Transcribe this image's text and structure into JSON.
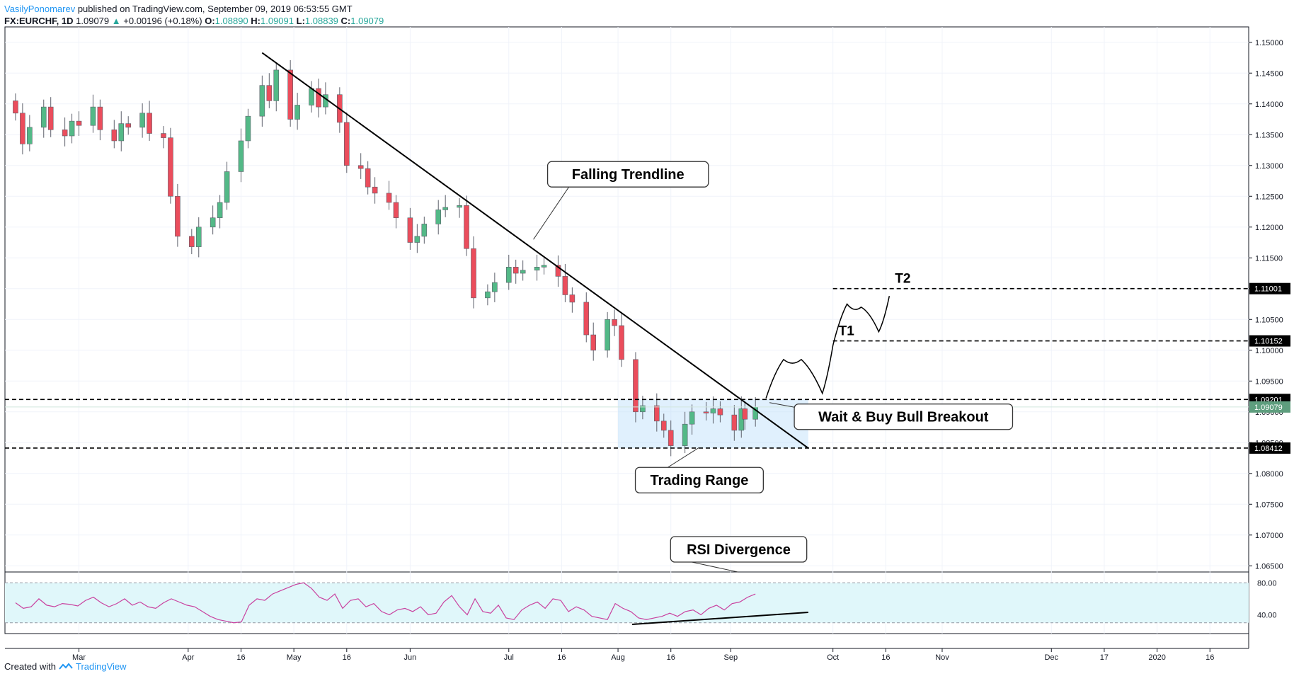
{
  "header": {
    "author": "VasilyPonomarev",
    "published": "published on TradingView.com, September 09, 2019 06:53:55 GMT",
    "symbol": "FX:EURCHF, 1D",
    "last": "1.09079",
    "arrow": "▲",
    "change": "+0.00196 (+0.18%)",
    "ohlc": [
      {
        "k": "O:",
        "v": "1.08890"
      },
      {
        "k": "H:",
        "v": "1.09091"
      },
      {
        "k": "L:",
        "v": "1.08839"
      },
      {
        "k": "C:",
        "v": "1.09079"
      }
    ]
  },
  "footer": {
    "created": "Created with",
    "brand": "TradingView"
  },
  "colors": {
    "up": "#53b987",
    "down": "#eb4d5c",
    "wick": "#5d606b",
    "range_fill": "#bbdefb",
    "rsi_band": "#e0f7fa",
    "rsi_line": "#c9429f",
    "axis": "#131722",
    "price_tag": "#5e9e7e"
  },
  "chart_data": {
    "type": "candlestick",
    "symbol": "FX:EURCHF",
    "interval": "1D",
    "y_axis_ticks": [
      "1.15000",
      "1.14500",
      "1.14000",
      "1.13500",
      "1.13000",
      "1.12500",
      "1.12000",
      "1.11500",
      "1.11000",
      "1.10500",
      "1.10000",
      "1.09500",
      "1.09000",
      "1.08500",
      "1.08000",
      "1.07500",
      "1.07000",
      "1.06500"
    ],
    "y_tick_values": [
      1.15,
      1.145,
      1.14,
      1.135,
      1.13,
      1.125,
      1.12,
      1.115,
      1.11,
      1.105,
      1.1,
      1.095,
      1.09,
      1.085,
      1.08,
      1.075,
      1.07,
      1.065
    ],
    "ylim": [
      1.064,
      1.1525
    ],
    "x_axis_ticks": [
      {
        "label": "Mar",
        "date": "2019-03-01"
      },
      {
        "label": "Apr",
        "date": "2019-04-01"
      },
      {
        "label": "16",
        "date": "2019-04-16"
      },
      {
        "label": "May",
        "date": "2019-05-01"
      },
      {
        "label": "16",
        "date": "2019-05-16"
      },
      {
        "label": "Jun",
        "date": "2019-06-03"
      },
      {
        "label": "Jul",
        "date": "2019-07-01"
      },
      {
        "label": "16",
        "date": "2019-07-16"
      },
      {
        "label": "Aug",
        "date": "2019-08-01"
      },
      {
        "label": "16",
        "date": "2019-08-16"
      },
      {
        "label": "Sep",
        "date": "2019-09-02"
      },
      {
        "label": "Oct",
        "date": "2019-10-01"
      },
      {
        "label": "16",
        "date": "2019-10-16"
      },
      {
        "label": "Nov",
        "date": "2019-11-01"
      },
      {
        "label": "Dec",
        "date": "2019-12-02"
      },
      {
        "label": "17",
        "date": "2019-12-17"
      },
      {
        "label": "2020",
        "date": "2020-01-01"
      },
      {
        "label": "16",
        "date": "2020-01-16"
      }
    ],
    "x_range_dates": [
      "2019-02-08",
      "2020-01-27"
    ],
    "close_series": [
      [
        "2019-02-11",
        1.1385
      ],
      [
        "2019-02-13",
        1.1335
      ],
      [
        "2019-02-15",
        1.1362
      ],
      [
        "2019-02-19",
        1.1395
      ],
      [
        "2019-02-21",
        1.1358
      ],
      [
        "2019-02-25",
        1.1348
      ],
      [
        "2019-02-27",
        1.1372
      ],
      [
        "2019-03-01",
        1.1365
      ],
      [
        "2019-03-05",
        1.1395
      ],
      [
        "2019-03-07",
        1.1358
      ],
      [
        "2019-03-11",
        1.134
      ],
      [
        "2019-03-13",
        1.1368
      ],
      [
        "2019-03-15",
        1.1362
      ],
      [
        "2019-03-19",
        1.1385
      ],
      [
        "2019-03-21",
        1.1352
      ],
      [
        "2019-03-25",
        1.1345
      ],
      [
        "2019-03-27",
        1.125
      ],
      [
        "2019-03-29",
        1.1185
      ],
      [
        "2019-04-02",
        1.1168
      ],
      [
        "2019-04-04",
        1.12
      ],
      [
        "2019-04-08",
        1.1215
      ],
      [
        "2019-04-10",
        1.124
      ],
      [
        "2019-04-12",
        1.129
      ],
      [
        "2019-04-16",
        1.134
      ],
      [
        "2019-04-18",
        1.138
      ],
      [
        "2019-04-22",
        1.143
      ],
      [
        "2019-04-24",
        1.1405
      ],
      [
        "2019-04-26",
        1.1455
      ],
      [
        "2019-04-30",
        1.1375
      ],
      [
        "2019-05-02",
        1.1398
      ],
      [
        "2019-05-06",
        1.1425
      ],
      [
        "2019-05-08",
        1.1395
      ],
      [
        "2019-05-10",
        1.1415
      ],
      [
        "2019-05-14",
        1.137
      ],
      [
        "2019-05-16",
        1.13
      ],
      [
        "2019-05-20",
        1.1295
      ],
      [
        "2019-05-22",
        1.1265
      ],
      [
        "2019-05-24",
        1.1255
      ],
      [
        "2019-05-28",
        1.124
      ],
      [
        "2019-05-30",
        1.1215
      ],
      [
        "2019-06-03",
        1.1175
      ],
      [
        "2019-06-05",
        1.1185
      ],
      [
        "2019-06-07",
        1.1205
      ],
      [
        "2019-06-11",
        1.1228
      ],
      [
        "2019-06-13",
        1.1232
      ],
      [
        "2019-06-17",
        1.1235
      ],
      [
        "2019-06-19",
        1.1165
      ],
      [
        "2019-06-21",
        1.1085
      ],
      [
        "2019-06-25",
        1.1095
      ],
      [
        "2019-06-27",
        1.111
      ],
      [
        "2019-07-01",
        1.1135
      ],
      [
        "2019-07-03",
        1.1125
      ],
      [
        "2019-07-05",
        1.113
      ],
      [
        "2019-07-09",
        1.1135
      ],
      [
        "2019-07-11",
        1.1138
      ],
      [
        "2019-07-15",
        1.112
      ],
      [
        "2019-07-17",
        1.109
      ],
      [
        "2019-07-19",
        1.1078
      ],
      [
        "2019-07-23",
        1.1025
      ],
      [
        "2019-07-25",
        1.1
      ],
      [
        "2019-07-29",
        1.105
      ],
      [
        "2019-07-31",
        1.104
      ],
      [
        "2019-08-02",
        1.0985
      ],
      [
        "2019-08-06",
        1.09
      ],
      [
        "2019-08-08",
        1.091
      ],
      [
        "2019-08-12",
        1.0885
      ],
      [
        "2019-08-14",
        1.087
      ],
      [
        "2019-08-16",
        1.0845
      ],
      [
        "2019-08-20",
        1.088
      ],
      [
        "2019-08-22",
        1.09
      ],
      [
        "2019-08-26",
        1.0898
      ],
      [
        "2019-08-28",
        1.0905
      ],
      [
        "2019-08-30",
        1.0895
      ],
      [
        "2019-09-03",
        1.087
      ],
      [
        "2019-09-05",
        1.0905
      ],
      [
        "2019-09-06",
        1.0888
      ],
      [
        "2019-09-09",
        1.0908
      ]
    ],
    "last_price": "1.09079",
    "horizontal_levels": [
      {
        "label": "1.09201",
        "value": 1.09201,
        "style": "dashed"
      },
      {
        "label": "1.08412",
        "value": 1.08412,
        "style": "dashed"
      },
      {
        "label": "1.10152",
        "value": 1.10152,
        "style": "dashed"
      },
      {
        "label": "1.11001",
        "value": 1.11001,
        "style": "dashed"
      }
    ],
    "trendline": {
      "from": [
        "2019-04-22",
        1.1483
      ],
      "to": [
        "2019-09-24",
        1.0841
      ]
    },
    "trading_range": {
      "from": "2019-08-01",
      "to": "2019-09-24",
      "low": 1.08412,
      "high": 1.09201
    },
    "annotations": [
      {
        "text": "Falling Trendline",
        "anchor": [
          "2019-07-08",
          1.118
        ]
      },
      {
        "text": "Wait & Buy Bull Breakout",
        "anchor": [
          "2019-09-13",
          1.0915
        ]
      },
      {
        "text": "Trading Range",
        "anchor": [
          "2019-08-24",
          1.0842
        ]
      },
      {
        "text": "RSI Divergence",
        "anchor": [
          "2019-09-04",
          1.064
        ]
      },
      {
        "text": "T1",
        "anchor": [
          "2019-10-01",
          1.10152
        ]
      },
      {
        "text": "T2",
        "anchor": [
          "2019-10-17",
          1.11001
        ]
      }
    ],
    "projected_path": [
      [
        "2019-09-12",
        1.0922
      ],
      [
        "2019-09-17",
        1.0985
      ],
      [
        "2019-09-22",
        1.0985
      ],
      [
        "2019-09-28",
        1.093
      ],
      [
        "2019-10-01",
        1.1008
      ],
      [
        "2019-10-05",
        1.1075
      ],
      [
        "2019-10-09",
        1.107
      ],
      [
        "2019-10-14",
        1.103
      ],
      [
        "2019-10-17",
        1.1088
      ]
    ],
    "rsi": {
      "y_axis_ticks": [
        "80.00",
        "40.00"
      ],
      "levels": [
        80,
        30
      ],
      "values": [
        55,
        48,
        50,
        60,
        52,
        50,
        54,
        53,
        51,
        58,
        62,
        55,
        50,
        54,
        60,
        52,
        56,
        50,
        48,
        55,
        60,
        56,
        52,
        50,
        44,
        38,
        34,
        32,
        30,
        31,
        52,
        60,
        58,
        66,
        70,
        74,
        78,
        80,
        73,
        62,
        58,
        66,
        48,
        58,
        60,
        50,
        54,
        44,
        40,
        46,
        48,
        44,
        50,
        40,
        42,
        56,
        64,
        50,
        40,
        60,
        44,
        42,
        52,
        36,
        34,
        46,
        52,
        56,
        48,
        60,
        58,
        44,
        50,
        46,
        38,
        36,
        34,
        54,
        48,
        44,
        36,
        34,
        36,
        38,
        42,
        38,
        44,
        46,
        40,
        48,
        52,
        46,
        54,
        56,
        62,
        66
      ],
      "divergence_line": {
        "from": [
          "2019-08-05",
          28
        ],
        "to": [
          "2019-09-24",
          43
        ]
      }
    }
  }
}
